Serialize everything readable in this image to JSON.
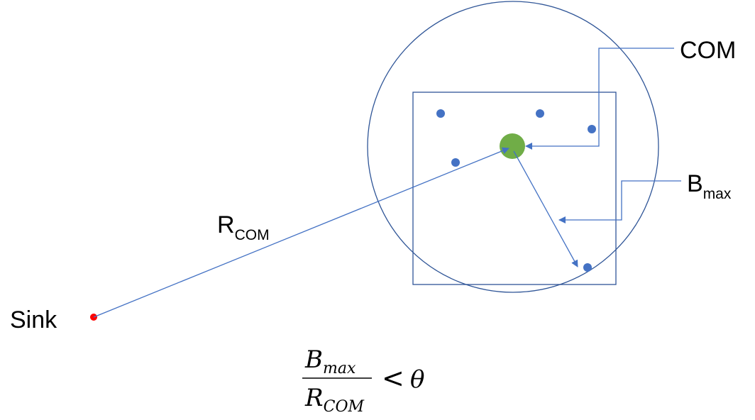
{
  "labels": {
    "com": "COM",
    "b_max": {
      "base": "B",
      "sub": "max"
    },
    "r_com": {
      "base": "R",
      "sub": "COM"
    },
    "sink": "Sink"
  },
  "formula": {
    "numerator": {
      "base": "B",
      "sub": "max"
    },
    "denominator": {
      "base": "R",
      "sub": "COM"
    },
    "operator": "<",
    "threshold": "θ"
  },
  "colors": {
    "line": "#4472c4",
    "outline": "#2f5597",
    "node": "#4472c4",
    "com_node": "#70ad47",
    "sink_node": "#ff0000",
    "text": "#000000"
  }
}
